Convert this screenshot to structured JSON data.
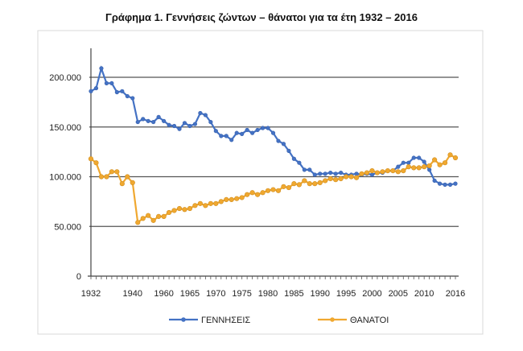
{
  "chart_data": {
    "type": "line",
    "title": "Γράφημα 1.  Γεννήσεις ζώντων – θάνατοι για τα έτη 1932 – 2016",
    "xlabel": "",
    "ylabel": "",
    "ylim": [
      0,
      200000
    ],
    "yticks": [
      "0",
      "50.000",
      "100.000",
      "150.000",
      "200.000"
    ],
    "ytick_values": [
      0,
      50000,
      100000,
      150000,
      200000
    ],
    "x": [
      1932,
      1933,
      1934,
      1935,
      1936,
      1937,
      1938,
      1939,
      1940,
      1955,
      1956,
      1957,
      1958,
      1959,
      1960,
      1961,
      1962,
      1963,
      1964,
      1965,
      1966,
      1967,
      1968,
      1969,
      1970,
      1971,
      1972,
      1973,
      1974,
      1975,
      1976,
      1977,
      1978,
      1979,
      1980,
      1981,
      1982,
      1983,
      1984,
      1985,
      1986,
      1987,
      1988,
      1989,
      1990,
      1991,
      1992,
      1993,
      1994,
      1995,
      1996,
      1997,
      1998,
      1999,
      2000,
      2001,
      2002,
      2003,
      2004,
      2005,
      2006,
      2007,
      2008,
      2009,
      2010,
      2011,
      2012,
      2013,
      2014,
      2015,
      2016
    ],
    "xtick_labels": [
      "1932",
      "1940",
      "1960",
      "1965",
      "1970",
      "1975",
      "1980",
      "1985",
      "1990",
      "1995",
      "2000",
      "2005",
      "2010",
      "2016"
    ],
    "grid": true,
    "legend_position": "bottom",
    "series": [
      {
        "name": "ΓΕΝΝΗΣΕΙΣ",
        "color": "#4472c4",
        "values": [
          186000,
          189000,
          209000,
          194000,
          194000,
          185000,
          186000,
          181000,
          179000,
          155000,
          158000,
          156000,
          155000,
          160000,
          156000,
          152000,
          151000,
          148000,
          154000,
          151000,
          153000,
          164000,
          162000,
          155000,
          146000,
          141000,
          141000,
          137000,
          144000,
          143000,
          147000,
          144000,
          147000,
          149000,
          149000,
          144000,
          136000,
          133000,
          126000,
          118000,
          114000,
          107000,
          107000,
          102000,
          103000,
          103000,
          104000,
          103000,
          104000,
          102000,
          102000,
          103000,
          102000,
          103000,
          102000,
          104000,
          104000,
          106000,
          106000,
          110000,
          114000,
          114000,
          119000,
          119000,
          115000,
          107000,
          96000,
          93000,
          92000,
          92000,
          93000
        ]
      },
      {
        "name": "ΘΑΝΑΤΟΙ",
        "color": "#f0a830",
        "values": [
          118000,
          114000,
          100000,
          100000,
          105000,
          105000,
          93000,
          100000,
          94000,
          54000,
          58000,
          61000,
          56000,
          60000,
          60000,
          64000,
          66000,
          68000,
          67000,
          68000,
          71000,
          73000,
          71000,
          73000,
          73000,
          75000,
          77000,
          77000,
          78000,
          79000,
          82000,
          84000,
          82000,
          84000,
          86000,
          87000,
          86000,
          90000,
          89000,
          93000,
          92000,
          96000,
          93000,
          93000,
          94000,
          96000,
          98000,
          97000,
          98000,
          100000,
          100000,
          99000,
          103000,
          104000,
          106000,
          104000,
          105000,
          106000,
          106000,
          105000,
          106000,
          110000,
          109000,
          109000,
          110000,
          111000,
          117000,
          112000,
          114000,
          122000,
          119000
        ]
      }
    ]
  }
}
